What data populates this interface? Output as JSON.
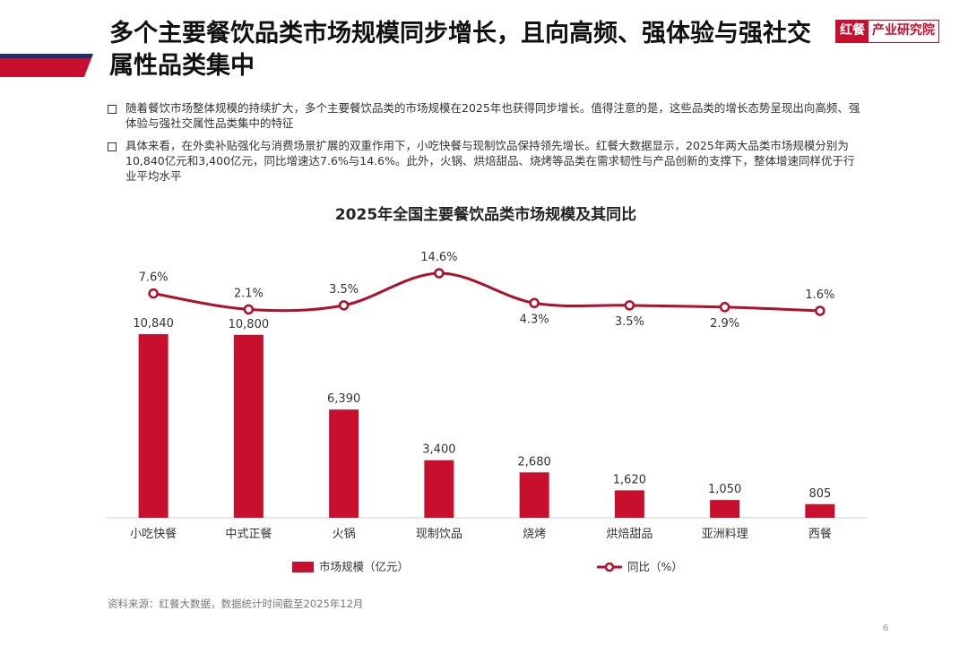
{
  "page": {
    "title": "多个主要餐饮品类市场规模同步增长，且向高频、强体验与强社交属性品类集中",
    "logo_brand": "红餐",
    "logo_sub": "产业研究院",
    "bullets": [
      "随着餐饮市场整体规模的持续扩大，多个主要餐饮品类的市场规模在2025年也获得同步增长。值得注意的是，这些品类的增长态势呈现出向高频、强体验与强社交属性品类集中的特征",
      "具体来看，在外卖补贴强化与消费场景扩展的双重作用下，小吃快餐与现制饮品保持领先增长。红餐大数据显示，2025年两大品类市场规模分别为10,840亿元和3,400亿元，同比增速达7.6%与14.6%。此外，火锅、烘焙甜品、烧烤等品类在需求韧性与产品创新的支撑下，整体增速同样优于行业平均水平"
    ],
    "source": "资料来源：红餐大数据，数据统计时间截至2025年12月",
    "page_number": "6",
    "colors": {
      "accent": "#c8102e",
      "accent_blue": "#1e2f6e",
      "line": "#b0102a"
    }
  },
  "chart_data": {
    "type": "bar",
    "title": "2025年全国主要餐饮品类市场规模及其同比",
    "categories": [
      "小吃快餐",
      "中式正餐",
      "火锅",
      "现制饮品",
      "烧烤",
      "烘焙甜品",
      "亚洲料理",
      "西餐"
    ],
    "series": [
      {
        "name": "市场规模（亿元）",
        "type": "bar",
        "values": [
          10840,
          10800,
          6390,
          3400,
          2680,
          1620,
          1050,
          805
        ],
        "labels": [
          "10,840",
          "10,800",
          "6,390",
          "3,400",
          "2,680",
          "1,620",
          "1,050",
          "805"
        ]
      },
      {
        "name": "同比（%）",
        "type": "line",
        "values": [
          7.6,
          2.1,
          3.5,
          14.6,
          4.3,
          3.5,
          2.9,
          1.6
        ],
        "labels": [
          "7.6%",
          "2.1%",
          "3.5%",
          "14.6%",
          "4.3%",
          "3.5%",
          "2.9%",
          "1.6%"
        ]
      }
    ],
    "legend": "bottom",
    "grid": false
  }
}
